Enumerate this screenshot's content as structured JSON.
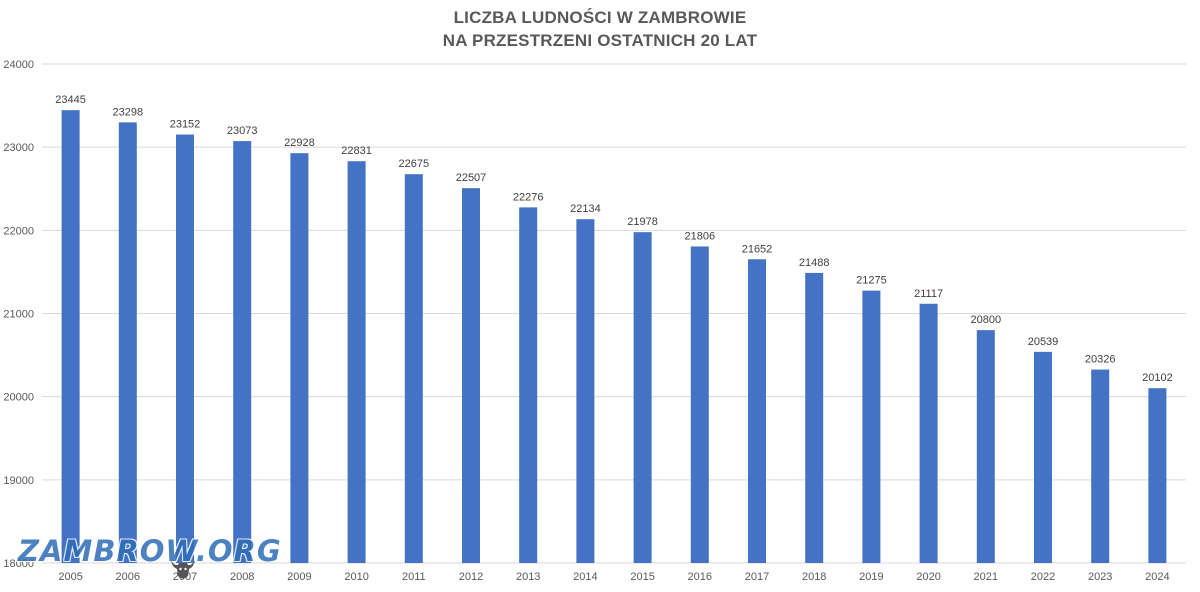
{
  "chart_data": {
    "type": "bar",
    "title_lines": [
      "LICZBA LUDNOŚCI W ZAMBROWIE",
      "NA PRZESTRZENI OSTATNICH 20 LAT"
    ],
    "categories": [
      "2005",
      "2006",
      "2007",
      "2008",
      "2009",
      "2010",
      "2011",
      "2012",
      "2013",
      "2014",
      "2015",
      "2016",
      "2017",
      "2018",
      "2019",
      "2020",
      "2021",
      "2022",
      "2023",
      "2024"
    ],
    "values": [
      23445,
      23298,
      23152,
      23073,
      22928,
      22831,
      22675,
      22507,
      22276,
      22134,
      21978,
      21806,
      21652,
      21488,
      21275,
      21117,
      20800,
      20539,
      20326,
      20102
    ],
    "data_labels": [
      "23445",
      "23298",
      "23152",
      "23073",
      "22928",
      "22831",
      "22675",
      "22507",
      "22276",
      "22134",
      "21978",
      "21806",
      "21652",
      "21488",
      "21275",
      "21117",
      "20800",
      "20539",
      "20326",
      "20102"
    ],
    "ylim": [
      18000,
      24000
    ],
    "yticks": [
      "18000",
      "19000",
      "20000",
      "21000",
      "22000",
      "23000",
      "24000"
    ],
    "grid": true,
    "legend": "none",
    "bar_color": "#4472c4",
    "grid_color": "#d9d9d9"
  },
  "watermark": {
    "text": "ZAMBROW.ORG",
    "icon": "bison-head-icon"
  }
}
